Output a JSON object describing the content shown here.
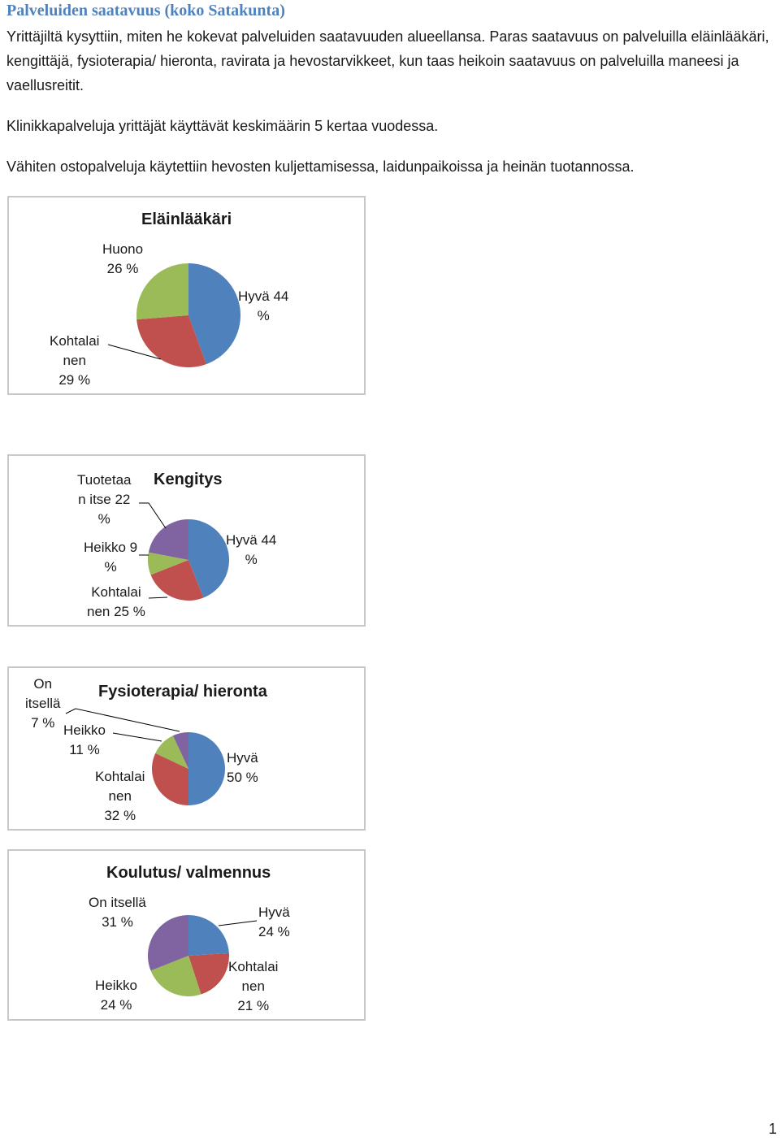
{
  "heading": "Palveluiden saatavuus (koko Satakunta)",
  "paragraphs": [
    "Yrittäjiltä kysyttiin, miten he kokevat palveluiden saatavuuden alueellansa. Paras saatavuus on palveluilla eläinlääkäri, kengittäjä, fysioterapia/ hieronta, ravirata ja hevostarvikkeet, kun taas heikoin saatavuus on palveluilla maneesi ja vaellusreitit.",
    "Klinikkapalveluja yrittäjät käyttävät keskimäärin 5 kertaa vuodessa.",
    "Vähiten ostopalveluja käytettiin hevosten kuljettamisessa, laidunpaikoissa ja heinän tuotannossa."
  ],
  "colors": {
    "blue": "#4f81bd",
    "red": "#c0504d",
    "green": "#9bbb59",
    "purple": "#8064a2",
    "heading": "#4f81bd"
  },
  "chart_data": [
    {
      "type": "pie",
      "title": "Eläinlääkäri",
      "slices": [
        {
          "name": "Hyvä",
          "value": 44,
          "label": "Hyvä 44\n%",
          "color": "#4f81bd"
        },
        {
          "name": "Kohtalainen",
          "value": 29,
          "label": "Kohtalai\nnen\n29 %",
          "color": "#c0504d"
        },
        {
          "name": "Huono",
          "value": 26,
          "label": "Huono\n26 %",
          "color": "#9bbb59"
        }
      ]
    },
    {
      "type": "pie",
      "title": "Kengitys",
      "slices": [
        {
          "name": "Hyvä",
          "value": 44,
          "label": "Hyvä 44\n%",
          "color": "#4f81bd"
        },
        {
          "name": "Kohtalainen",
          "value": 25,
          "label": "Kohtalai\nnen 25 %",
          "color": "#c0504d"
        },
        {
          "name": "Heikko",
          "value": 9,
          "label": "Heikko 9\n%",
          "color": "#9bbb59"
        },
        {
          "name": "Tuotetaan itse",
          "value": 22,
          "label": "Tuotetaa\nn itse 22\n%",
          "color": "#8064a2"
        }
      ]
    },
    {
      "type": "pie",
      "title": "Fysioterapia/ hieronta",
      "slices": [
        {
          "name": "Hyvä",
          "value": 50,
          "label": "Hyvä\n50 %",
          "color": "#4f81bd"
        },
        {
          "name": "Kohtalainen",
          "value": 32,
          "label": "Kohtalai\nnen\n32 %",
          "color": "#c0504d"
        },
        {
          "name": "Heikko",
          "value": 11,
          "label": "Heikko\n11 %",
          "color": "#9bbb59"
        },
        {
          "name": "On itsellä",
          "value": 7,
          "label": "On\nitsellä\n7 %",
          "color": "#8064a2"
        }
      ]
    },
    {
      "type": "pie",
      "title": "Koulutus/ valmennus",
      "slices": [
        {
          "name": "Hyvä",
          "value": 24,
          "label": "Hyvä\n24 %",
          "color": "#4f81bd"
        },
        {
          "name": "Kohtalainen",
          "value": 21,
          "label": "Kohtalai\nnen\n21 %",
          "color": "#c0504d"
        },
        {
          "name": "Heikko",
          "value": 24,
          "label": "Heikko\n24 %",
          "color": "#9bbb59"
        },
        {
          "name": "On itsellä",
          "value": 31,
          "label": "On itsellä\n31 %",
          "color": "#8064a2"
        }
      ]
    }
  ],
  "page_number": "1"
}
